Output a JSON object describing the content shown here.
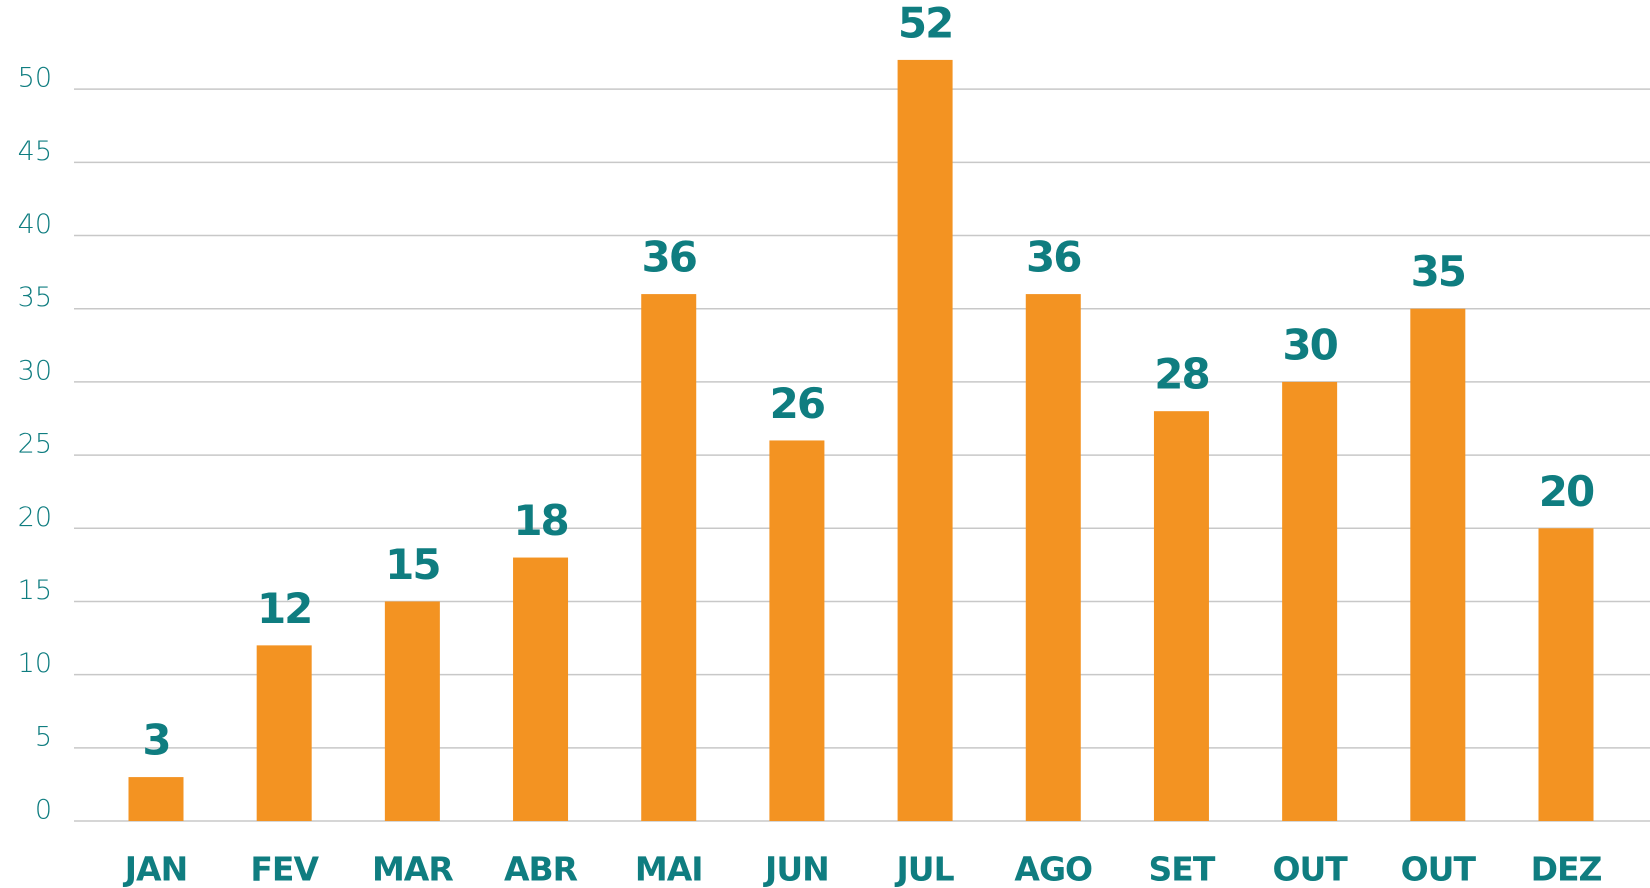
{
  "chart_data": {
    "type": "bar",
    "categories": [
      "JAN",
      "FEV",
      "MAR",
      "ABR",
      "MAI",
      "JUN",
      "JUL",
      "AGO",
      "SET",
      "OUT",
      "OUT",
      "DEZ"
    ],
    "values": [
      3,
      12,
      15,
      18,
      36,
      26,
      52,
      36,
      28,
      30,
      35,
      20
    ],
    "color": "#f39322",
    "ylim": [
      0,
      55
    ],
    "yticks": [
      0,
      5,
      10,
      15,
      20,
      25,
      30,
      35,
      40,
      45,
      50
    ],
    "grid": true
  }
}
